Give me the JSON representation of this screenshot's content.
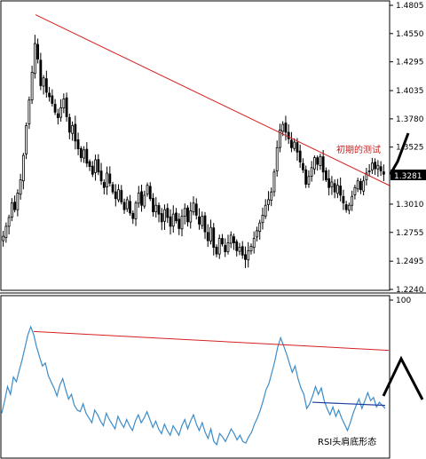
{
  "chart_data": [
    {
      "type": "candlestick",
      "panel": "price",
      "y_ticks": [
        "1.4805",
        "1.4550",
        "1.4295",
        "1.4035",
        "1.3780",
        "1.3525",
        "1.3281",
        "1.3010",
        "1.2755",
        "1.2495",
        "1.2240"
      ],
      "ylim": [
        1.224,
        1.4805
      ],
      "current_price_label": "1.3281",
      "annotation": "初期的测试",
      "colors": {
        "trendline": "#d42020",
        "annotation": "#c81e1e",
        "candle": "#000000",
        "price_box": "#000000"
      },
      "trendline": {
        "start": [
          0,
          1.472
        ],
        "end": [
          1,
          1.327
        ]
      },
      "close_series": [
        1.272,
        1.281,
        1.289,
        1.302,
        1.296,
        1.311,
        1.323,
        1.345,
        1.372,
        1.395,
        1.42,
        1.446,
        1.432,
        1.408,
        1.415,
        1.402,
        1.398,
        1.392,
        1.384,
        1.379,
        1.388,
        1.396,
        1.38,
        1.366,
        1.372,
        1.358,
        1.351,
        1.343,
        1.35,
        1.338,
        1.335,
        1.328,
        1.341,
        1.33,
        1.322,
        1.316,
        1.329,
        1.32,
        1.312,
        1.306,
        1.314,
        1.303,
        1.296,
        1.305,
        1.293,
        1.288,
        1.302,
        1.311,
        1.3,
        1.309,
        1.318,
        1.306,
        1.294,
        1.3,
        1.292,
        1.285,
        1.296,
        1.289,
        1.281,
        1.292,
        1.286,
        1.279,
        1.29,
        1.297,
        1.285,
        1.295,
        1.302,
        1.291,
        1.283,
        1.29,
        1.276,
        1.268,
        1.28,
        1.262,
        1.256,
        1.27,
        1.265,
        1.258,
        1.266,
        1.273,
        1.266,
        1.259,
        1.262,
        1.255,
        1.251,
        1.259,
        1.263,
        1.27,
        1.277,
        1.284,
        1.291,
        1.3,
        1.305,
        1.312,
        1.33,
        1.352,
        1.368,
        1.373,
        1.366,
        1.36,
        1.352,
        1.357,
        1.348,
        1.339,
        1.332,
        1.319,
        1.326,
        1.334,
        1.343,
        1.337,
        1.344,
        1.33,
        1.323,
        1.316,
        1.321,
        1.312,
        1.318,
        1.309,
        1.302,
        1.296,
        1.3,
        1.308,
        1.316,
        1.322,
        1.314,
        1.322,
        1.329,
        1.331,
        1.338,
        1.333,
        1.336,
        1.331,
        1.328
      ]
    },
    {
      "type": "line",
      "panel": "rsi",
      "y_ticks": [
        "100"
      ],
      "ylim": [
        0,
        100
      ],
      "annotation": "RSI头肩底形态",
      "colors": {
        "line": "#3c8cc8",
        "upper_trend": "#d42020",
        "neckline": "#1f3c9e",
        "pattern": "#000000"
      },
      "upper_trend": {
        "start": [
          0.06,
          80
        ],
        "end": [
          1,
          68
        ]
      },
      "neckline": {
        "start": [
          0.81,
          35
        ],
        "end": [
          1,
          33
        ]
      },
      "values": [
        28,
        36,
        45,
        40,
        51,
        48,
        55,
        62,
        70,
        78,
        83,
        78,
        70,
        64,
        58,
        60,
        52,
        48,
        44,
        39,
        46,
        50,
        43,
        37,
        40,
        33,
        30,
        29,
        34,
        28,
        25,
        22,
        30,
        27,
        23,
        20,
        28,
        24,
        21,
        18,
        26,
        22,
        19,
        24,
        20,
        17,
        23,
        27,
        22,
        25,
        29,
        24,
        19,
        23,
        18,
        15,
        21,
        17,
        14,
        20,
        17,
        14,
        20,
        24,
        18,
        23,
        27,
        21,
        17,
        22,
        16,
        12,
        18,
        10,
        8,
        15,
        13,
        10,
        14,
        18,
        15,
        11,
        14,
        10,
        9,
        13,
        16,
        21,
        25,
        30,
        36,
        43,
        47,
        54,
        61,
        70,
        76,
        71,
        66,
        60,
        54,
        58,
        50,
        44,
        40,
        31,
        34,
        39,
        45,
        40,
        44,
        36,
        31,
        27,
        32,
        26,
        30,
        25,
        21,
        17,
        22,
        28,
        33,
        37,
        31,
        36,
        41,
        36,
        38,
        32,
        35,
        33,
        31
      ]
    }
  ]
}
